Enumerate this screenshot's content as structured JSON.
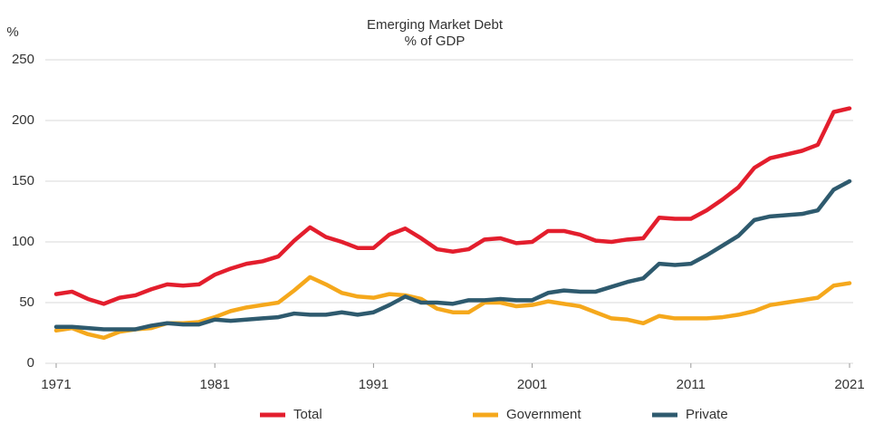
{
  "chart_data": {
    "type": "line",
    "title": "Emerging Market Debt",
    "subtitle": "% of GDP",
    "y_label": "%",
    "x": [
      1971,
      1972,
      1973,
      1974,
      1975,
      1976,
      1977,
      1978,
      1979,
      1980,
      1981,
      1982,
      1983,
      1984,
      1985,
      1986,
      1987,
      1988,
      1989,
      1990,
      1991,
      1992,
      1993,
      1994,
      1995,
      1996,
      1997,
      1998,
      1999,
      2000,
      2001,
      2002,
      2003,
      2004,
      2005,
      2006,
      2007,
      2008,
      2009,
      2010,
      2011,
      2012,
      2013,
      2014,
      2015,
      2016,
      2017,
      2018,
      2019,
      2020,
      2021
    ],
    "series": [
      {
        "name": "Total",
        "color": "#e31e2d",
        "values": [
          57,
          59,
          53,
          49,
          54,
          56,
          61,
          65,
          64,
          65,
          73,
          78,
          82,
          84,
          88,
          101,
          112,
          104,
          100,
          95,
          95,
          106,
          111,
          103,
          94,
          92,
          94,
          102,
          103,
          99,
          100,
          109,
          109,
          106,
          101,
          100,
          102,
          103,
          120,
          119,
          119,
          126,
          135,
          145,
          161,
          169,
          172,
          175,
          180,
          207,
          210
        ]
      },
      {
        "name": "Government",
        "color": "#f5a81c",
        "values": [
          27,
          29,
          24,
          21,
          26,
          28,
          29,
          33,
          33,
          34,
          38,
          43,
          46,
          48,
          50,
          60,
          71,
          65,
          58,
          55,
          54,
          57,
          56,
          53,
          45,
          42,
          42,
          50,
          50,
          47,
          48,
          51,
          49,
          47,
          42,
          37,
          36,
          33,
          39,
          37,
          37,
          37,
          38,
          40,
          43,
          48,
          50,
          52,
          54,
          64,
          66
        ]
      },
      {
        "name": "Private",
        "color": "#2e5a6e",
        "values": [
          30,
          30,
          29,
          28,
          28,
          28,
          31,
          33,
          32,
          32,
          36,
          35,
          36,
          37,
          38,
          41,
          40,
          40,
          42,
          40,
          42,
          48,
          55,
          50,
          50,
          49,
          52,
          52,
          53,
          52,
          52,
          58,
          60,
          59,
          59,
          63,
          67,
          70,
          82,
          81,
          82,
          89,
          97,
          105,
          118,
          121,
          122,
          123,
          126,
          143,
          150
        ]
      }
    ],
    "xlim": [
      1971,
      2021
    ],
    "xticks": [
      1971,
      1981,
      1991,
      2001,
      2011,
      2021
    ],
    "ylim": [
      0,
      250
    ],
    "yticks": [
      0,
      50,
      100,
      150,
      200,
      250
    ],
    "grid": true,
    "legend": "bottom"
  }
}
